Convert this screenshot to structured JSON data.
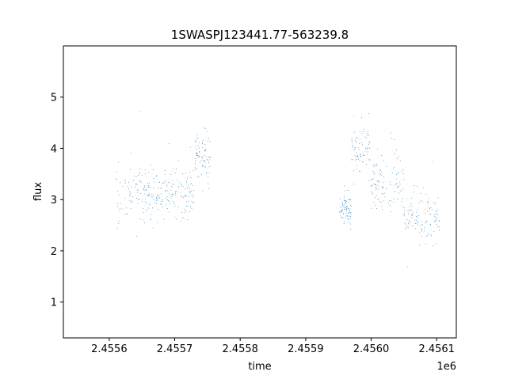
{
  "chart_data": {
    "type": "scatter",
    "title": "1SWASPJ123441.77-563239.8",
    "xlabel": "time",
    "ylabel": "flux",
    "x_offset_label": "1e6",
    "xlim": [
      2.45553,
      2.45613
    ],
    "ylim": [
      0.3,
      6.0
    ],
    "x_ticks": [
      2.4556,
      2.4557,
      2.4558,
      2.4559,
      2.456,
      2.4561
    ],
    "x_tick_labels": [
      "2.4556",
      "2.4557",
      "2.4558",
      "2.4559",
      "2.4560",
      "2.4561"
    ],
    "y_ticks": [
      1,
      2,
      3,
      4,
      5
    ],
    "y_tick_labels": [
      "1",
      "2",
      "3",
      "4",
      "5"
    ],
    "grid": false,
    "marker_color": "#1f77b4",
    "series": [
      {
        "segments": [
          {
            "x_start": 2.45561,
            "x_end": 2.45573,
            "center": 3.15,
            "spread": 0.26
          },
          {
            "x_start": 2.45573,
            "x_end": 2.455755,
            "center": 3.85,
            "spread": 0.22
          },
          {
            "x_start": 2.455952,
            "x_end": 2.45597,
            "center": 2.85,
            "spread": 0.15
          },
          {
            "x_start": 2.45597,
            "x_end": 2.456,
            "center": 3.95,
            "spread": 0.32
          },
          {
            "x_start": 2.456,
            "x_end": 2.45605,
            "center": 3.35,
            "spread": 0.3
          },
          {
            "x_start": 2.45605,
            "x_end": 2.456105,
            "center": 2.65,
            "spread": 0.2
          }
        ]
      }
    ]
  }
}
